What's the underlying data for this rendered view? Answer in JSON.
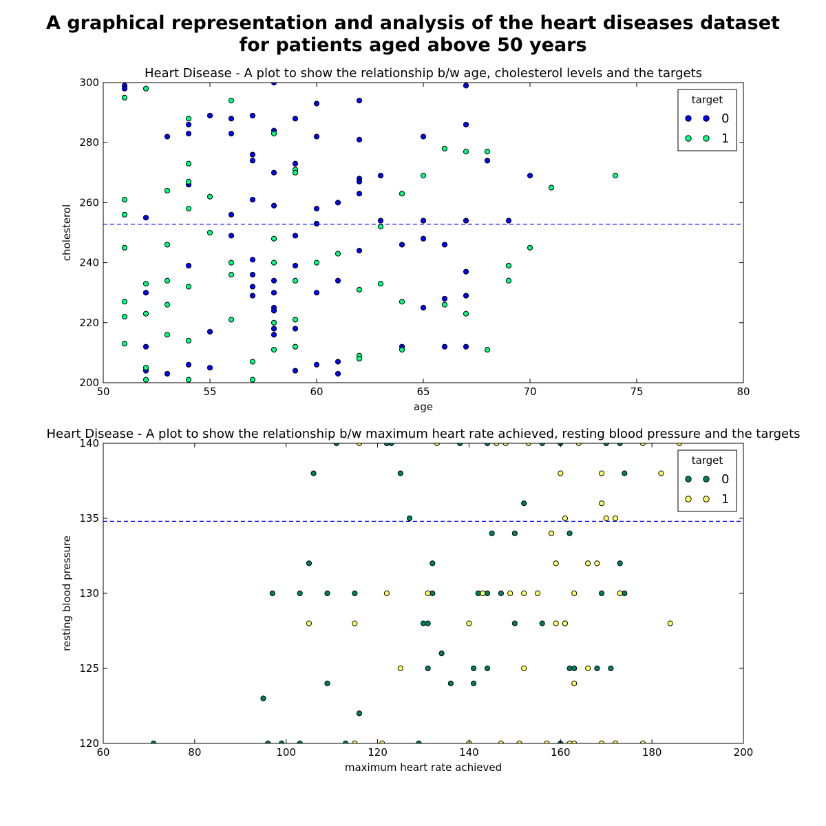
{
  "figure": {
    "title_line1": "A graphical representation and analysis of the heart diseases dataset",
    "title_line2": "for patients aged above 50 years"
  },
  "chart_data": [
    {
      "type": "scatter",
      "title": "Heart Disease - A plot to show the relationship b/w age, cholesterol levels and the targets",
      "xlabel": "age",
      "ylabel": "cholesterol",
      "xlim": [
        50,
        80
      ],
      "ylim": [
        200,
        300
      ],
      "xticks": [
        50,
        55,
        60,
        65,
        70,
        75,
        80
      ],
      "yticks": [
        200,
        220,
        240,
        260,
        280,
        300
      ],
      "mean_line": 252.8,
      "grid": false,
      "legend": {
        "title": "target",
        "position": "top-right"
      },
      "series": [
        {
          "name": "0",
          "color": "#0000ff",
          "points": [
            [
              51,
              299
            ],
            [
              51,
              298
            ],
            [
              52,
              255
            ],
            [
              52,
              230
            ],
            [
              52,
              212
            ],
            [
              52,
              204
            ],
            [
              53,
              282
            ],
            [
              53,
              203
            ],
            [
              54,
              286
            ],
            [
              54,
              283
            ],
            [
              54,
              266
            ],
            [
              54,
              239
            ],
            [
              54,
              206
            ],
            [
              55,
              289
            ],
            [
              55,
              217
            ],
            [
              55,
              205
            ],
            [
              56,
              288
            ],
            [
              56,
              283
            ],
            [
              56,
              256
            ],
            [
              56,
              249
            ],
            [
              57,
              289
            ],
            [
              57,
              276
            ],
            [
              57,
              274
            ],
            [
              57,
              261
            ],
            [
              57,
              241
            ],
            [
              57,
              236
            ],
            [
              57,
              232
            ],
            [
              57,
              229
            ],
            [
              58,
              300
            ],
            [
              58,
              284
            ],
            [
              58,
              270
            ],
            [
              58,
              259
            ],
            [
              58,
              234
            ],
            [
              58,
              230
            ],
            [
              58,
              225
            ],
            [
              58,
              224
            ],
            [
              58,
              218
            ],
            [
              58,
              216
            ],
            [
              59,
              288
            ],
            [
              59,
              273
            ],
            [
              59,
              249
            ],
            [
              59,
              239
            ],
            [
              59,
              218
            ],
            [
              59,
              204
            ],
            [
              60,
              293
            ],
            [
              60,
              282
            ],
            [
              60,
              258
            ],
            [
              60,
              253
            ],
            [
              60,
              230
            ],
            [
              60,
              206
            ],
            [
              61,
              260
            ],
            [
              61,
              234
            ],
            [
              61,
              207
            ],
            [
              61,
              203
            ],
            [
              62,
              294
            ],
            [
              62,
              281
            ],
            [
              62,
              268
            ],
            [
              62,
              267
            ],
            [
              62,
              263
            ],
            [
              62,
              244
            ],
            [
              63,
              269
            ],
            [
              63,
              254
            ],
            [
              64,
              246
            ],
            [
              64,
              212
            ],
            [
              65,
              282
            ],
            [
              65,
              254
            ],
            [
              65,
              248
            ],
            [
              65,
              225
            ],
            [
              66,
              246
            ],
            [
              66,
              228
            ],
            [
              66,
              212
            ],
            [
              67,
              299
            ],
            [
              67,
              286
            ],
            [
              67,
              254
            ],
            [
              67,
              237
            ],
            [
              67,
              229
            ],
            [
              67,
              212
            ],
            [
              68,
              274
            ],
            [
              69,
              254
            ],
            [
              70,
              269
            ]
          ]
        },
        {
          "name": "1",
          "color": "#00ff80",
          "points": [
            [
              51,
              295
            ],
            [
              51,
              261
            ],
            [
              51,
              256
            ],
            [
              51,
              245
            ],
            [
              51,
              227
            ],
            [
              51,
              222
            ],
            [
              51,
              213
            ],
            [
              52,
              298
            ],
            [
              52,
              233
            ],
            [
              52,
              223
            ],
            [
              52,
              205
            ],
            [
              52,
              201
            ],
            [
              53,
              264
            ],
            [
              53,
              246
            ],
            [
              53,
              234
            ],
            [
              53,
              226
            ],
            [
              53,
              216
            ],
            [
              54,
              288
            ],
            [
              54,
              273
            ],
            [
              54,
              267
            ],
            [
              54,
              258
            ],
            [
              54,
              232
            ],
            [
              54,
              214
            ],
            [
              54,
              201
            ],
            [
              55,
              262
            ],
            [
              55,
              250
            ],
            [
              56,
              294
            ],
            [
              56,
              240
            ],
            [
              56,
              236
            ],
            [
              56,
              221
            ],
            [
              57,
              207
            ],
            [
              57,
              201
            ],
            [
              58,
              283
            ],
            [
              58,
              248
            ],
            [
              58,
              240
            ],
            [
              58,
              220
            ],
            [
              58,
              211
            ],
            [
              59,
              271
            ],
            [
              59,
              270
            ],
            [
              59,
              234
            ],
            [
              59,
              221
            ],
            [
              59,
              212
            ],
            [
              60,
              240
            ],
            [
              61,
              243
            ],
            [
              62,
              231
            ],
            [
              62,
              209
            ],
            [
              62,
              208
            ],
            [
              63,
              252
            ],
            [
              63,
              233
            ],
            [
              64,
              263
            ],
            [
              64,
              227
            ],
            [
              64,
              211
            ],
            [
              65,
              269
            ],
            [
              66,
              278
            ],
            [
              66,
              226
            ],
            [
              67,
              277
            ],
            [
              67,
              223
            ],
            [
              68,
              277
            ],
            [
              68,
              211
            ],
            [
              69,
              239
            ],
            [
              69,
              234
            ],
            [
              70,
              245
            ],
            [
              71,
              265
            ],
            [
              74,
              269
            ]
          ]
        }
      ]
    },
    {
      "type": "scatter",
      "title": "Heart Disease - A plot to show the relationship b/w maximum heart rate achieved, resting blood pressure and the targets",
      "xlabel": "maximum heart rate achieved",
      "ylabel": "resting blood pressure",
      "xlim": [
        60,
        200
      ],
      "ylim": [
        120,
        140
      ],
      "xticks": [
        60,
        80,
        100,
        120,
        140,
        160,
        180,
        200
      ],
      "yticks": [
        120,
        125,
        130,
        135,
        140
      ],
      "mean_line": 134.8,
      "grid": false,
      "legend": {
        "title": "target",
        "position": "top-right"
      },
      "series": [
        {
          "name": "0",
          "color": "#007f5f",
          "points": [
            [
              71,
              120
            ],
            [
              96,
              120
            ],
            [
              99,
              120
            ],
            [
              103,
              120
            ],
            [
              113,
              120
            ],
            [
              129,
              120
            ],
            [
              140,
              120
            ],
            [
              160,
              120
            ],
            [
              95,
              123
            ],
            [
              97,
              130
            ],
            [
              103,
              130
            ],
            [
              105,
              132
            ],
            [
              106,
              138
            ],
            [
              109,
              130
            ],
            [
              109,
              124
            ],
            [
              115,
              130
            ],
            [
              116,
              122
            ],
            [
              125,
              138
            ],
            [
              127,
              135
            ],
            [
              130,
              128
            ],
            [
              131,
              128
            ],
            [
              131,
              125
            ],
            [
              132,
              132
            ],
            [
              132,
              130
            ],
            [
              134,
              126
            ],
            [
              136,
              124
            ],
            [
              141,
              125
            ],
            [
              141,
              124
            ],
            [
              142,
              130
            ],
            [
              144,
              130
            ],
            [
              144,
              125
            ],
            [
              145,
              134
            ],
            [
              147,
              130
            ],
            [
              150,
              134
            ],
            [
              150,
              128
            ],
            [
              152,
              136
            ],
            [
              156,
              128
            ],
            [
              161,
              128
            ],
            [
              162,
              134
            ],
            [
              162,
              125
            ],
            [
              163,
              125
            ],
            [
              168,
              125
            ],
            [
              169,
              130
            ],
            [
              171,
              125
            ],
            [
              173,
              132
            ],
            [
              174,
              138
            ],
            [
              174,
              130
            ],
            [
              111,
              140
            ],
            [
              122,
              140
            ],
            [
              123,
              140
            ],
            [
              138,
              140
            ],
            [
              144,
              140
            ],
            [
              156,
              140
            ],
            [
              160,
              140
            ],
            [
              170,
              140
            ],
            [
              173,
              140
            ]
          ]
        },
        {
          "name": "1",
          "color": "#ffff66",
          "points": [
            [
              105,
              128
            ],
            [
              115,
              128
            ],
            [
              115,
              120
            ],
            [
              116,
              140
            ],
            [
              121,
              120
            ],
            [
              122,
              130
            ],
            [
              125,
              125
            ],
            [
              131,
              130
            ],
            [
              133,
              140
            ],
            [
              140,
              128
            ],
            [
              140,
              120
            ],
            [
              143,
              130
            ],
            [
              146,
              140
            ],
            [
              147,
              120
            ],
            [
              148,
              140
            ],
            [
              149,
              130
            ],
            [
              151,
              120
            ],
            [
              152,
              130
            ],
            [
              152,
              125
            ],
            [
              153,
              140
            ],
            [
              155,
              130
            ],
            [
              157,
              120
            ],
            [
              158,
              134
            ],
            [
              159,
              132
            ],
            [
              159,
              128
            ],
            [
              160,
              138
            ],
            [
              161,
              135
            ],
            [
              161,
              128
            ],
            [
              162,
              120
            ],
            [
              163,
              130
            ],
            [
              163,
              124
            ],
            [
              163,
              120
            ],
            [
              164,
              140
            ],
            [
              166,
              132
            ],
            [
              166,
              125
            ],
            [
              168,
              132
            ],
            [
              169,
              138
            ],
            [
              169,
              136
            ],
            [
              169,
              120
            ],
            [
              170,
              135
            ],
            [
              172,
              135
            ],
            [
              172,
              120
            ],
            [
              173,
              130
            ],
            [
              178,
              140
            ],
            [
              178,
              120
            ],
            [
              182,
              138
            ],
            [
              184,
              128
            ],
            [
              186,
              140
            ]
          ]
        }
      ]
    }
  ]
}
